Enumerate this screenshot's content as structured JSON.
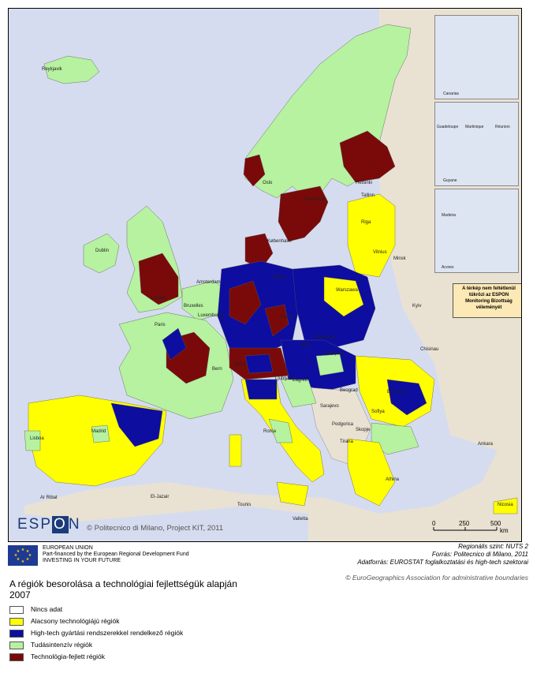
{
  "colors": {
    "sea": "#d6dcef",
    "land_outside": "#e9e2d3",
    "no_data": "#ffffff",
    "low_tech": "#ffff00",
    "high_tech_manufacturing": "#0d0da0",
    "knowledge_intensive": "#b6f2a0",
    "advanced_technology": "#7a0a0a"
  },
  "map": {
    "city_labels": [
      "Reykjavik",
      "Oslo",
      "Helsinki",
      "Tallinn",
      "Stockholm",
      "Riga",
      "Dublin",
      "København",
      "Vilnius",
      "Minsk",
      "London",
      "Amsterdam",
      "Berlin",
      "Warszawa",
      "Bruxelles",
      "Luxembourg",
      "Praha",
      "Kyiv",
      "Paris",
      "Bratislava",
      "Wien",
      "Budapest",
      "Bern",
      "Vaduz",
      "Chisinau",
      "Ljubljana",
      "Zagreb",
      "Bucuresti",
      "Beograd",
      "Sarajevo",
      "Podgorica",
      "Sofiya",
      "Skopje",
      "Roma",
      "Madrid",
      "Lisboa",
      "Tirana",
      "Ankara",
      "Athina",
      "Valletta",
      "Tounis",
      "Ar Ribat",
      "El-Jazair",
      "Nicosia"
    ],
    "insets": {
      "canarias": "Canarias",
      "guadeloupe": "Guadeloupe",
      "martinique": "Martinique",
      "reunion": "Réunion",
      "guyane": "Guyane",
      "madeira": "Madeira",
      "acores": "Acores"
    },
    "notice_lines": [
      "A térkép nem feltétlenül",
      "tükrözi az ESPON",
      "Monitoring Bizottság",
      "véleményét"
    ],
    "espon_logo": {
      "left": "ESP",
      "center": "O",
      "right": "N"
    },
    "copyright": "© Politecnico di Milano, Project KIT, 2011",
    "scale": {
      "labels": [
        "0",
        "250",
        "500"
      ],
      "unit": "km"
    }
  },
  "eu_block": {
    "line1": "EUROPEAN UNION",
    "line2": "Part-financed by the European Regional Development Fund",
    "line3": "INVESTING IN YOUR FUTURE"
  },
  "source_block": {
    "line1": "Regionális szint: NUTS 2",
    "line2": "Forrás: Politecnico di Milano, 2011",
    "line3": "Adatforrás: EUROSTAT foglalkoztatási és high-tech szektorai"
  },
  "eurogeographics": "© EuroGeographics Association for administrative boundaries",
  "legend": {
    "title_line1": "A régiók besorolása a technológiai fejlettségük alapján",
    "title_line2": "2007",
    "items": [
      {
        "label": "Nincs adat",
        "color": "#ffffff"
      },
      {
        "label": "Alacsony technológiájú régiók",
        "color": "#ffff00"
      },
      {
        "label": "High-tech gyártási rendszerekkel rendelkező régiók",
        "color": "#0d0da0"
      },
      {
        "label": "Tudásintenzív régiók",
        "color": "#b6f2a0"
      },
      {
        "label": "Technológia-fejlett régiók",
        "color": "#7a0a0a"
      }
    ]
  }
}
